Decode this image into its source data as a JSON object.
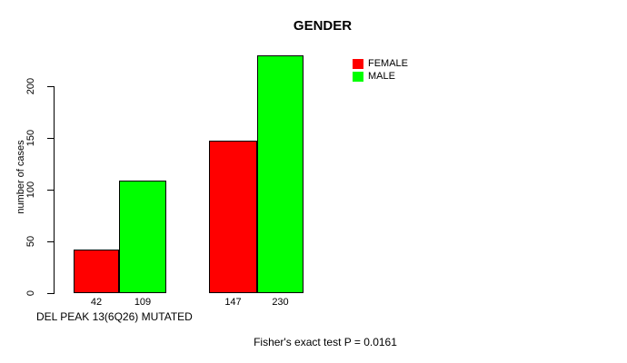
{
  "chart_data": {
    "type": "bar",
    "title": "GENDER",
    "xlabel": "",
    "ylabel": "number of cases",
    "categories": [
      "DEL PEAK 13(6Q26) MUTATED",
      ""
    ],
    "series": [
      {
        "name": "FEMALE",
        "color": "#ff0000",
        "values": [
          42,
          147
        ]
      },
      {
        "name": "MALE",
        "color": "#00ff00",
        "values": [
          109,
          230
        ]
      }
    ],
    "yticks": [
      0,
      50,
      100,
      150,
      200
    ],
    "ylim": [
      0,
      230
    ],
    "grid": false,
    "legend_position": "top-right",
    "bar_border_color": "#000000",
    "annotation": "Fisher's exact test P = 0.0161"
  }
}
